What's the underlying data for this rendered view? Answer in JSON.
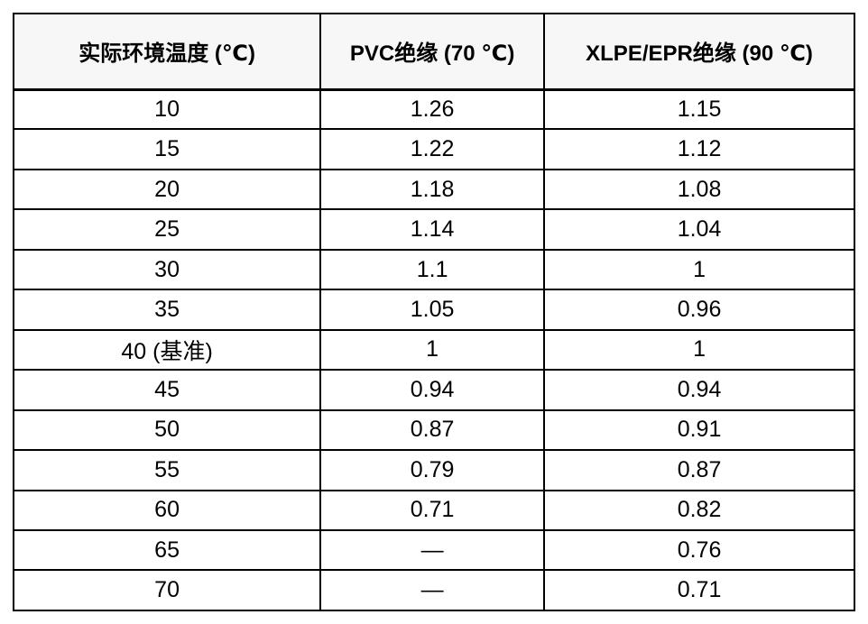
{
  "colors": {
    "border": "#000000",
    "header_bg": "#f7f7f7",
    "body_bg": "#ffffff",
    "text": "#000000"
  },
  "table": {
    "headers": [
      "实际环境温度 (℃)",
      "PVC绝缘 (70 ℃)",
      "XLPE/EPR绝缘 (90 ℃)"
    ],
    "rows": [
      [
        "10",
        "1.26",
        "1.15"
      ],
      [
        "15",
        "1.22",
        "1.12"
      ],
      [
        "20",
        "1.18",
        "1.08"
      ],
      [
        "25",
        "1.14",
        "1.04"
      ],
      [
        "30",
        "1.1",
        "1"
      ],
      [
        "35",
        "1.05",
        "0.96"
      ],
      [
        "40 (基准)",
        "1",
        "1"
      ],
      [
        "45",
        "0.94",
        "0.94"
      ],
      [
        "50",
        "0.87",
        "0.91"
      ],
      [
        "55",
        "0.79",
        "0.87"
      ],
      [
        "60",
        "0.71",
        "0.82"
      ],
      [
        "65",
        "—",
        "0.76"
      ],
      [
        "70",
        "—",
        "0.71"
      ]
    ]
  }
}
